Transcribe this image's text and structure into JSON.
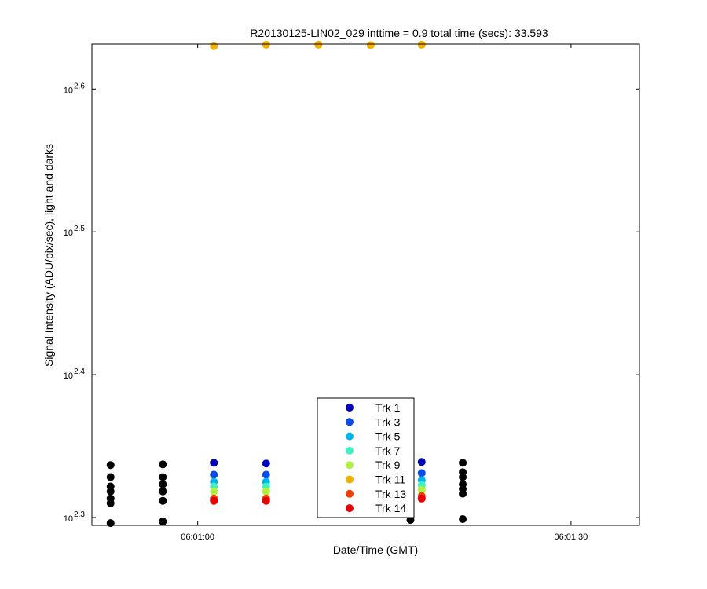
{
  "chart_data": {
    "type": "scatter",
    "title": "R20130125-LIN02_029 inttime = 0.9 total time (secs): 33.593",
    "xlabel": "Date/Time (GMT)",
    "ylabel": "Signal Intensity (ADU/pix/sec), light and darks",
    "y_scale": "log",
    "y_tick_base": "10",
    "y_tick_exponents": [
      "2.3",
      "2.4",
      "2.5",
      "2.6"
    ],
    "y_log_range": [
      2.2945,
      2.6315
    ],
    "x_time_range": [
      "06:00:51.5",
      "06:01:35.5"
    ],
    "x_ticks": [
      "06:01:00",
      "06:01:30"
    ],
    "grid": false,
    "legend_position": "bottom-center",
    "legend_entries": [
      {
        "label": "Trk 1",
        "color": "#0000b8"
      },
      {
        "label": "Trk 3",
        "color": "#0a4ce8"
      },
      {
        "label": "Trk 5",
        "color": "#00b4f0"
      },
      {
        "label": "Trk 7",
        "color": "#40f0c0"
      },
      {
        "label": "Trk 9",
        "color": "#b0f040"
      },
      {
        "label": "Trk 11",
        "color": "#f0b000"
      },
      {
        "label": "Trk 13",
        "color": "#f04000"
      },
      {
        "label": "Trk 14",
        "color": "#e80000"
      }
    ],
    "dark_color": "#000000",
    "dark_series": [
      {
        "x": "06:00:53.0",
        "y_log": [
          2.3367,
          2.3283,
          2.3217,
          2.3183,
          2.3133,
          2.31,
          2.2961
        ]
      },
      {
        "x": "06:00:57.2",
        "y_log": [
          2.3372,
          2.3283,
          2.3233,
          2.3183,
          2.3117,
          2.2972
        ]
      },
      {
        "x": "06:01:17.1",
        "y_log": [
          2.3378,
          2.3317,
          2.3272,
          2.3222,
          2.3183,
          2.315,
          2.2983
        ]
      },
      {
        "x": "06:01:21.3",
        "y_log": [
          2.3383,
          2.3317,
          2.3283,
          2.3233,
          2.32,
          2.3167,
          2.2989
        ]
      }
    ],
    "light_series": [
      {
        "x": "06:01:01.3",
        "y_log": [
          2.3383,
          2.33,
          2.325,
          2.3217,
          2.3183,
          2.3133,
          2.3117
        ],
        "trk11_y_log": 2.63
      },
      {
        "x": "06:01:05.5",
        "y_log": [
          2.3378,
          2.33,
          2.325,
          2.3217,
          2.3183,
          2.3133,
          2.3117
        ],
        "trk11_y_log": 2.631
      },
      {
        "x": "06:01:09.7",
        "y_log": [],
        "trk11_y_log": 2.631
      },
      {
        "x": "06:01:13.9",
        "y_log": [],
        "trk11_y_log": 2.6307
      },
      {
        "x": "06:01:18.0",
        "y_log": [
          2.3389,
          2.3311,
          2.3261,
          2.3228,
          2.3194,
          2.315,
          2.3133
        ],
        "trk11_y_log": 2.631
      }
    ],
    "light_track_order": [
      "Trk 1",
      "Trk 3",
      "Trk 5",
      "Trk 7",
      "Trk 9",
      "Trk 13",
      "Trk 14"
    ]
  }
}
